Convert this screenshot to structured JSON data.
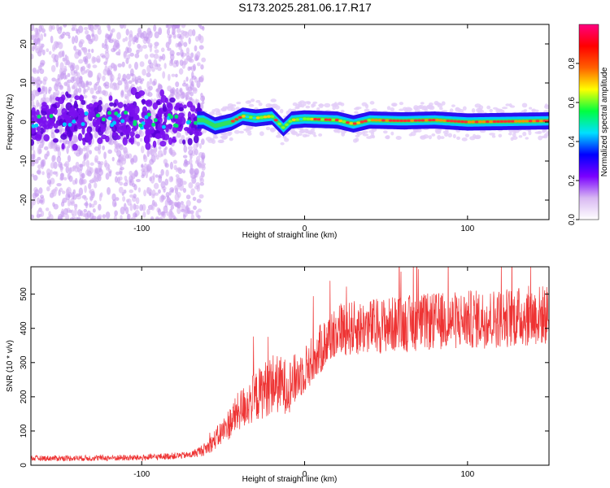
{
  "title": "S173.2025.281.06.17.R17",
  "chart_data": [
    {
      "type": "heatmap",
      "xlabel": "Height of straight line (km)",
      "ylabel": "Frequency (Hz)",
      "xlim": [
        -168,
        150
      ],
      "ylim": [
        -25,
        25
      ],
      "xticks": [
        -100,
        0,
        100
      ],
      "xtick_labels": [
        "-100",
        "0",
        "100"
      ],
      "yticks": [
        -20,
        -10,
        0,
        10,
        20
      ],
      "ytick_labels": [
        "-20",
        "-10",
        "0",
        "10",
        "20"
      ],
      "colorbar": {
        "label": "Normalized spectral amplitude",
        "range": [
          0,
          1
        ],
        "ticks": [
          0.0,
          0.2,
          0.4,
          0.6,
          0.8
        ],
        "tick_labels": [
          "0.0",
          "0.2",
          "0.4",
          "0.6",
          "0.8"
        ],
        "colors": [
          "#ffffff",
          "#d8b8f2",
          "#7a00ff",
          "#0000ff",
          "#00e0ff",
          "#00ff40",
          "#ffff00",
          "#ff6000",
          "#ff0000",
          "#ff0080"
        ]
      },
      "ridge": {
        "frequency_hz": [
          [
            -168,
            0.5
          ],
          [
            -62,
            0.5
          ],
          [
            -55,
            -1.0
          ],
          [
            -45,
            0.0
          ],
          [
            -38,
            1.5
          ],
          [
            -30,
            1.0
          ],
          [
            -20,
            1.5
          ],
          [
            -13,
            -1.5
          ],
          [
            -8,
            0.5
          ],
          [
            0,
            0.8
          ],
          [
            20,
            0.5
          ],
          [
            30,
            -0.5
          ],
          [
            40,
            0.5
          ],
          [
            60,
            0.3
          ],
          [
            80,
            0.5
          ],
          [
            100,
            0.0
          ],
          [
            150,
            0.3
          ]
        ],
        "scatter_region_km": [
          -168,
          -62
        ],
        "strong_amplitude_region_km": [
          -45,
          150
        ]
      },
      "grid": false
    },
    {
      "type": "line",
      "xlabel": "Height of straight line (km)",
      "ylabel": "SNR (10 * v/v)",
      "xlim": [
        -168,
        150
      ],
      "ylim": [
        0,
        580
      ],
      "xticks": [
        -100,
        0,
        100
      ],
      "xtick_labels": [
        "-100",
        "0",
        "100"
      ],
      "yticks": [
        0,
        100,
        200,
        300,
        400,
        500
      ],
      "ytick_labels": [
        "0",
        "100",
        "200",
        "300",
        "400",
        "500"
      ],
      "color": "#ee3333",
      "trend": {
        "x": [
          -168,
          -100,
          -70,
          -60,
          -50,
          -40,
          -30,
          -20,
          -10,
          0,
          10,
          20,
          30,
          50,
          80,
          120,
          150
        ],
        "y": [
          20,
          22,
          30,
          50,
          100,
          160,
          200,
          240,
          230,
          280,
          340,
          400,
          400,
          410,
          420,
          430,
          440
        ]
      },
      "noise_amplitude": {
        "x": [
          -168,
          -70,
          -60,
          -40,
          -20,
          0,
          20,
          150
        ],
        "y": [
          8,
          10,
          20,
          60,
          90,
          70,
          80,
          90
        ]
      },
      "grid": false
    }
  ]
}
